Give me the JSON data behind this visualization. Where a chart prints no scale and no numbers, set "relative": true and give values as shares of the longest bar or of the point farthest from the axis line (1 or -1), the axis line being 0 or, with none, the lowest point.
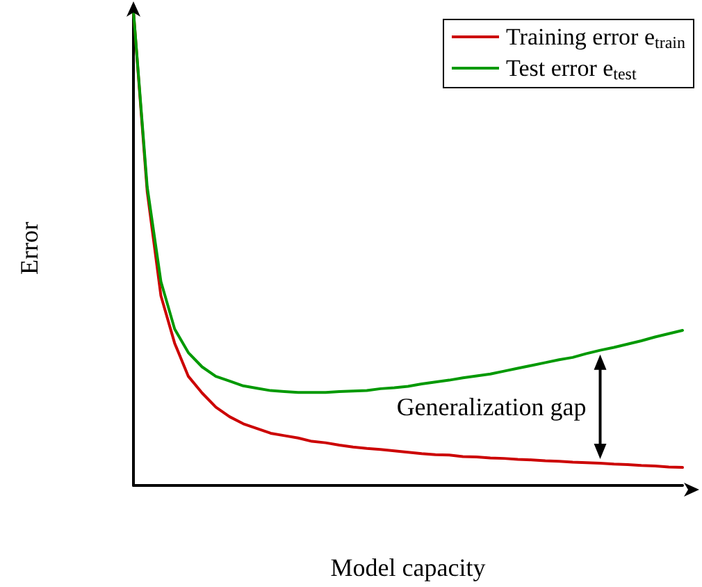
{
  "chart_data": {
    "type": "line",
    "relative": true,
    "xlabel": "Model capacity",
    "ylabel": "Error",
    "categories": [
      null,
      null,
      null,
      null,
      null,
      null,
      null,
      null,
      null,
      null,
      null,
      null,
      null,
      null,
      null,
      null,
      null,
      null,
      null,
      null,
      null,
      null,
      null,
      null,
      null,
      null,
      null,
      null,
      null,
      null,
      null,
      null,
      null,
      null,
      null,
      null,
      null,
      null,
      null,
      null,
      null
    ],
    "series": [
      {
        "name": "Training error e$_{train}$",
        "color": "#cc0000",
        "values": [
          1.0,
          0.62,
          0.4,
          0.3,
          0.23,
          0.195,
          0.165,
          0.145,
          0.13,
          0.12,
          0.11,
          0.105,
          0.1,
          0.093,
          0.09,
          0.085,
          0.081,
          0.078,
          0.076,
          0.073,
          0.07,
          0.067,
          0.065,
          0.064,
          0.061,
          0.06,
          0.058,
          0.057,
          0.055,
          0.054,
          0.052,
          0.051,
          0.049,
          0.048,
          0.047,
          0.045,
          0.044,
          0.042,
          0.041,
          0.039,
          0.038
        ]
      },
      {
        "name": "Test error e$_{test}$",
        "color": "#009900",
        "values": [
          1.0,
          0.63,
          0.43,
          0.33,
          0.28,
          0.25,
          0.23,
          0.22,
          0.21,
          0.205,
          0.2,
          0.198,
          0.196,
          0.196,
          0.196,
          0.198,
          0.199,
          0.2,
          0.204,
          0.206,
          0.209,
          0.214,
          0.218,
          0.222,
          0.227,
          0.231,
          0.235,
          0.241,
          0.247,
          0.253,
          0.259,
          0.265,
          0.27,
          0.278,
          0.285,
          0.291,
          0.298,
          0.305,
          0.313,
          0.32,
          0.327
        ]
      }
    ],
    "annotations": [
      "Generalization gap"
    ],
    "legend": "top right",
    "grid": false,
    "marker": "none",
    "line_style": "solid"
  }
}
